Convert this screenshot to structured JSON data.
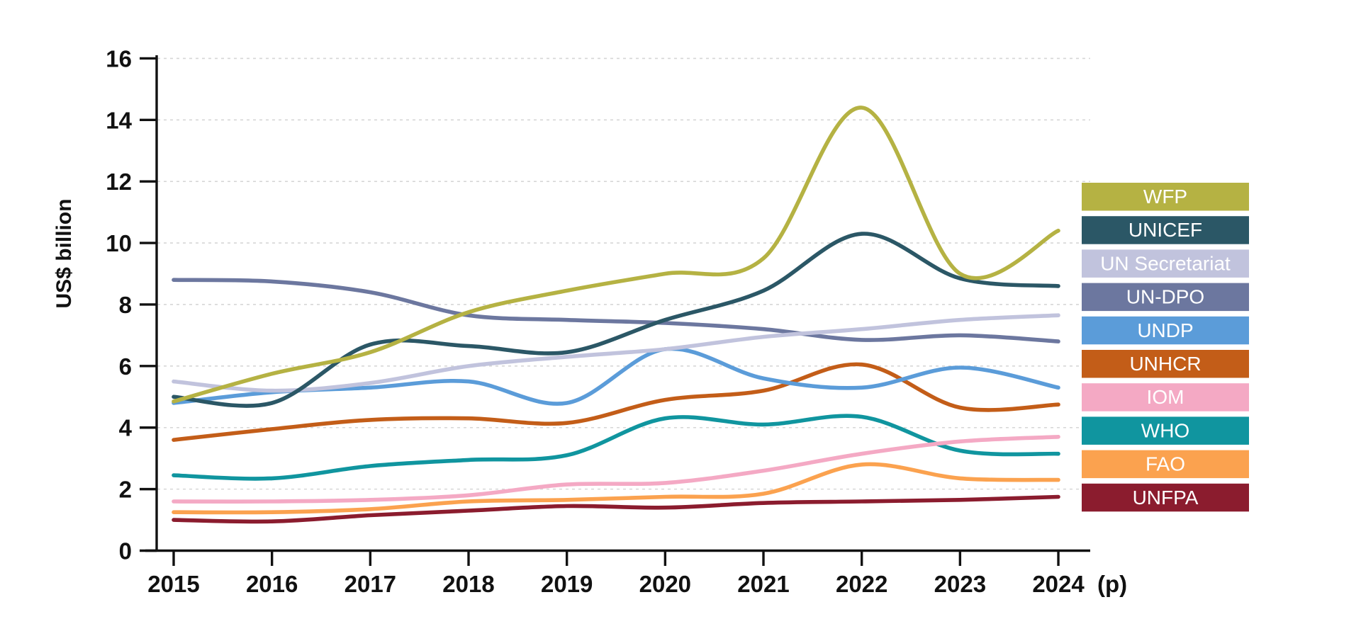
{
  "chart_data": {
    "type": "line",
    "title": "",
    "ylabel": "US$ billion",
    "xlabel": "",
    "x": [
      2015,
      2016,
      2017,
      2018,
      2019,
      2020,
      2021,
      2022,
      2023,
      2024
    ],
    "x_tick_labels": [
      "2015",
      "2016",
      "2017",
      "2018",
      "2019",
      "2020",
      "2021",
      "2022",
      "2023",
      "2024"
    ],
    "x_last_suffix": "(p)",
    "y_ticks": [
      0,
      2,
      4,
      6,
      8,
      10,
      12,
      14,
      16
    ],
    "ylim": [
      0,
      16
    ],
    "grid": "horizontal dashed lines at every 2 units",
    "legend_position": "right",
    "curve": "smooth",
    "series": [
      {
        "name": "WFP",
        "color": "#b5b243",
        "values": [
          4.85,
          5.75,
          6.45,
          7.75,
          8.45,
          9.0,
          9.5,
          14.4,
          9.0,
          10.4
        ]
      },
      {
        "name": "UNICEF",
        "color": "#2b5766",
        "values": [
          5.0,
          4.8,
          6.7,
          6.65,
          6.45,
          7.5,
          8.45,
          10.3,
          8.85,
          8.6
        ]
      },
      {
        "name": "UN Secretariat",
        "color": "#c1c3dd",
        "values": [
          5.5,
          5.2,
          5.45,
          6.0,
          6.3,
          6.55,
          6.95,
          7.2,
          7.5,
          7.65
        ]
      },
      {
        "name": "UN-DPO",
        "color": "#6c779f",
        "values": [
          8.8,
          8.75,
          8.4,
          7.65,
          7.5,
          7.4,
          7.2,
          6.85,
          7.0,
          6.8
        ]
      },
      {
        "name": "UNDP",
        "color": "#5b9cd9",
        "values": [
          4.8,
          5.15,
          5.3,
          5.5,
          4.8,
          6.55,
          5.6,
          5.3,
          5.95,
          5.3
        ]
      },
      {
        "name": "UNHCR",
        "color": "#c35d18",
        "values": [
          3.6,
          3.95,
          4.25,
          4.3,
          4.15,
          4.9,
          5.2,
          6.05,
          4.65,
          4.75
        ]
      },
      {
        "name": "IOM",
        "color": "#f4a9c4",
        "values": [
          1.6,
          1.6,
          1.65,
          1.8,
          2.15,
          2.2,
          2.6,
          3.15,
          3.55,
          3.7
        ]
      },
      {
        "name": "WHO",
        "color": "#10959f",
        "values": [
          2.45,
          2.35,
          2.75,
          2.95,
          3.1,
          4.3,
          4.1,
          4.35,
          3.25,
          3.15
        ]
      },
      {
        "name": "FAO",
        "color": "#fba24f",
        "values": [
          1.25,
          1.25,
          1.35,
          1.6,
          1.65,
          1.75,
          1.85,
          2.8,
          2.35,
          2.3
        ]
      },
      {
        "name": "UNFPA",
        "color": "#8b1c2e",
        "values": [
          1.0,
          0.95,
          1.15,
          1.3,
          1.45,
          1.4,
          1.55,
          1.6,
          1.65,
          1.75
        ]
      }
    ],
    "colors": {
      "axis": "#111111",
      "gridline": "#d6d6d6",
      "background": "#ffffff",
      "legend_text": "#ffffff"
    }
  }
}
